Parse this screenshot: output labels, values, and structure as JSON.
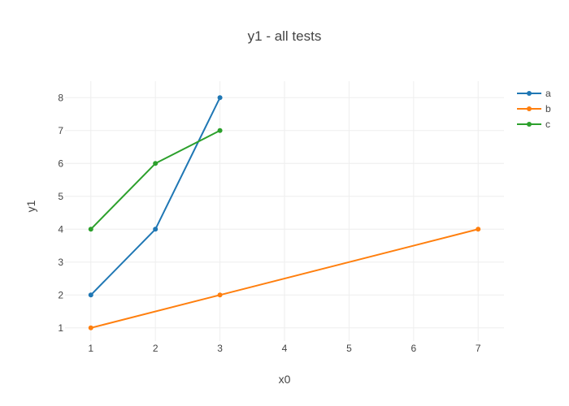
{
  "chart_data": {
    "type": "line",
    "title": "y1 - all tests",
    "xlabel": "x0",
    "ylabel": "y1",
    "xlim": [
      0.6,
      7.4
    ],
    "ylim": [
      0.6,
      8.5
    ],
    "x_ticks": [
      1,
      2,
      3,
      4,
      5,
      6,
      7
    ],
    "y_ticks": [
      1,
      2,
      3,
      4,
      5,
      6,
      7,
      8
    ],
    "grid": true,
    "legend_position": "top-right",
    "series": [
      {
        "name": "a",
        "color": "#1f77b4",
        "x": [
          1,
          2,
          3
        ],
        "y": [
          2,
          4,
          8
        ]
      },
      {
        "name": "b",
        "color": "#ff7f0e",
        "x": [
          1,
          3,
          7
        ],
        "y": [
          1,
          2,
          4
        ]
      },
      {
        "name": "c",
        "color": "#2ca02c",
        "x": [
          1,
          2,
          3
        ],
        "y": [
          4,
          6,
          7
        ]
      }
    ]
  }
}
